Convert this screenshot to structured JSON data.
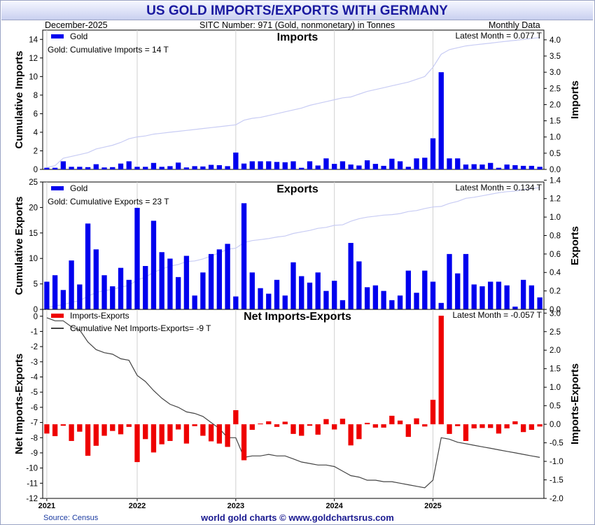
{
  "title": "US GOLD IMPORTS/EXPORTS WITH GERMANY",
  "header": {
    "date": "December-2025",
    "sitc": "SITC Number: 971 (Gold, nonmonetary) in Tonnes",
    "frequency": "Monthly Data"
  },
  "footer": {
    "source": "Source: Census",
    "credit": "world gold charts © www.goldchartsrus.com"
  },
  "colors": {
    "bars": "#0000ee",
    "net_bars": "#ee0000",
    "cumulative": "#c8ccf4",
    "net_line": "#444444"
  },
  "chart_data": [
    {
      "type": "bar",
      "title": "Imports",
      "legend_label": "Gold",
      "annotation": "Gold: Cumulative Imports = 14 T",
      "latest": "Latest Month = 0.077 T",
      "ylabel_left": "Cumulative Imports",
      "ylabel_right": "Imports",
      "ylim_left": [
        0,
        15
      ],
      "yticks_left": [
        "0",
        "2",
        "4",
        "6",
        "8",
        "10",
        "12",
        "14"
      ],
      "ylim_right": [
        0,
        4.3
      ],
      "yticks_right": [
        "0.0",
        "0.5",
        "1.0",
        "1.5",
        "2.0",
        "2.5",
        "3.0",
        "3.5",
        "4.0"
      ],
      "values": [
        0.05,
        0.05,
        0.25,
        0.08,
        0.08,
        0.07,
        0.16,
        0.06,
        0.07,
        0.18,
        0.25,
        0.08,
        0.08,
        0.2,
        0.08,
        0.1,
        0.21,
        0.06,
        0.1,
        0.09,
        0.14,
        0.13,
        0.1,
        0.52,
        0.18,
        0.25,
        0.25,
        0.25,
        0.23,
        0.22,
        0.25,
        0.05,
        0.25,
        0.12,
        0.34,
        0.17,
        0.25,
        0.15,
        0.12,
        0.28,
        0.17,
        0.11,
        0.33,
        0.25,
        0.08,
        0.34,
        0.36,
        0.96,
        3.0,
        0.34,
        0.34,
        0.15,
        0.16,
        0.15,
        0.2,
        0.05,
        0.15,
        0.13,
        0.11,
        0.11,
        0.08
      ],
      "cumulative": [
        0.2,
        0.4,
        1.2,
        1.4,
        1.6,
        1.8,
        2.2,
        2.4,
        2.6,
        2.9,
        3.3,
        3.5,
        3.6,
        3.8,
        3.9,
        4.0,
        4.1,
        4.2,
        4.3,
        4.4,
        4.5,
        4.6,
        4.7,
        4.8,
        5.3,
        5.5,
        5.6,
        5.8,
        6.0,
        6.2,
        6.4,
        6.6,
        6.9,
        7.1,
        7.3,
        7.5,
        7.7,
        7.8,
        8.1,
        8.4,
        8.6,
        8.8,
        9.0,
        9.2,
        9.4,
        9.7,
        10.0,
        11.0,
        12.4,
        12.9,
        13.1,
        13.3,
        13.4,
        13.5,
        13.6,
        13.7,
        13.8,
        13.9,
        14.0,
        14.1,
        14.2
      ]
    },
    {
      "type": "bar",
      "title": "Exports",
      "legend_label": "Gold",
      "annotation": "Gold: Cumulative Exports = 23 T",
      "latest": "Latest Month = 0.134 T",
      "ylabel_left": "Cumulative Exports",
      "ylabel_right": "Exports",
      "ylim_left": [
        0,
        25
      ],
      "yticks_left": [
        "0",
        "5",
        "10",
        "15",
        "20",
        "25"
      ],
      "ylim_right": [
        0,
        1.38
      ],
      "yticks_right": [
        "0.0",
        "0.2",
        "0.4",
        "0.6",
        "0.8",
        "1.0",
        "1.2",
        "1.4"
      ],
      "values": [
        0.3,
        0.37,
        0.21,
        0.53,
        0.27,
        0.93,
        0.65,
        0.37,
        0.25,
        0.45,
        0.32,
        1.1,
        0.47,
        0.96,
        0.62,
        0.55,
        0.35,
        0.58,
        0.15,
        0.4,
        0.6,
        0.65,
        0.71,
        0.14,
        1.15,
        0.4,
        0.23,
        0.17,
        0.32,
        0.15,
        0.51,
        0.36,
        0.29,
        0.4,
        0.2,
        0.31,
        0.1,
        0.72,
        0.52,
        0.24,
        0.26,
        0.2,
        0.1,
        0.15,
        0.42,
        0.18,
        0.42,
        0.3,
        0.07,
        0.6,
        0.39,
        0.6,
        0.27,
        0.25,
        0.3,
        0.3,
        0.26,
        0.03,
        0.32,
        0.26,
        0.13
      ],
      "cumulative": [
        0.3,
        0.7,
        0.9,
        1.4,
        1.7,
        2.6,
        3.3,
        3.7,
        3.9,
        4.4,
        4.7,
        5.8,
        6.3,
        7.3,
        7.9,
        8.5,
        8.8,
        9.4,
        9.5,
        9.9,
        10.5,
        11.1,
        11.8,
        12.0,
        13.1,
        13.5,
        13.7,
        13.9,
        14.2,
        14.4,
        14.9,
        15.2,
        15.5,
        15.9,
        16.1,
        16.5,
        16.6,
        17.3,
        17.8,
        18.1,
        18.3,
        18.5,
        18.6,
        18.8,
        19.2,
        19.4,
        19.8,
        20.1,
        20.2,
        20.8,
        21.2,
        21.8,
        22.0,
        22.3,
        22.6,
        22.9,
        23.1,
        23.2,
        23.5,
        23.7,
        23.9
      ]
    },
    {
      "type": "bar",
      "title": "Net Imports-Exports",
      "legend_label": "Imports-Exports",
      "legend_line_label": "Cumulative Net Imports-Exports= -9 T",
      "latest": "Latest Month = -0.057 T",
      "ylabel_left": "Net Imports-Exports",
      "ylabel_right": "Imports-Exports",
      "ylim_left": [
        -12,
        0.45
      ],
      "yticks_left": [
        "0",
        "-1",
        "-2",
        "-3",
        "-4",
        "-5",
        "-6",
        "-7",
        "-8",
        "-9",
        "-10",
        "-11",
        "-12"
      ],
      "ylim_right": [
        -2.0,
        3.1
      ],
      "yticks_right": [
        "-2.0",
        "-1.5",
        "-1.0",
        "-0.5",
        "0.0",
        "0.5",
        "1.0",
        "1.5",
        "2.0",
        "2.5",
        "3.0"
      ],
      "values": [
        -0.25,
        -0.32,
        -0.04,
        -0.45,
        -0.2,
        -0.85,
        -0.58,
        -0.31,
        -0.18,
        -0.27,
        -0.07,
        -1.02,
        -0.4,
        -0.76,
        -0.54,
        -0.45,
        -0.14,
        -0.52,
        -0.05,
        -0.31,
        -0.46,
        -0.52,
        -0.61,
        0.38,
        -0.97,
        -0.15,
        0.02,
        0.08,
        -0.07,
        0.07,
        -0.26,
        -0.31,
        -0.04,
        -0.28,
        0.14,
        -0.14,
        0.15,
        -0.57,
        -0.4,
        0.04,
        -0.09,
        -0.09,
        0.23,
        0.1,
        -0.34,
        0.16,
        -0.06,
        0.66,
        2.93,
        -0.26,
        -0.05,
        -0.45,
        -0.11,
        -0.1,
        -0.1,
        -0.25,
        -0.11,
        0.08,
        -0.21,
        -0.15,
        -0.06
      ],
      "cumulative": [
        -0.1,
        -0.3,
        -0.3,
        -0.7,
        -0.9,
        -1.7,
        -2.2,
        -2.4,
        -2.5,
        -2.8,
        -2.9,
        -3.9,
        -4.3,
        -4.9,
        -5.4,
        -5.8,
        -6.0,
        -6.3,
        -6.4,
        -6.6,
        -7.0,
        -7.4,
        -8.0,
        -8.0,
        -9.3,
        -9.2,
        -9.2,
        -9.1,
        -9.2,
        -9.2,
        -9.4,
        -9.6,
        -9.7,
        -9.8,
        -9.8,
        -9.9,
        -10.2,
        -10.5,
        -10.6,
        -10.8,
        -10.8,
        -10.9,
        -10.9,
        -11.0,
        -11.1,
        -11.2,
        -11.3,
        -10.8,
        -8.0,
        -8.1,
        -8.3,
        -8.4,
        -8.5,
        -8.6,
        -8.7,
        -8.8,
        -8.9,
        -9.0,
        -9.1,
        -9.2,
        -9.3
      ]
    }
  ],
  "x_axis": {
    "labels": [
      "2021",
      "2022",
      "2023",
      "2024",
      "2025"
    ],
    "label_month_index": [
      0,
      11,
      23,
      35,
      47
    ],
    "months": 61
  }
}
